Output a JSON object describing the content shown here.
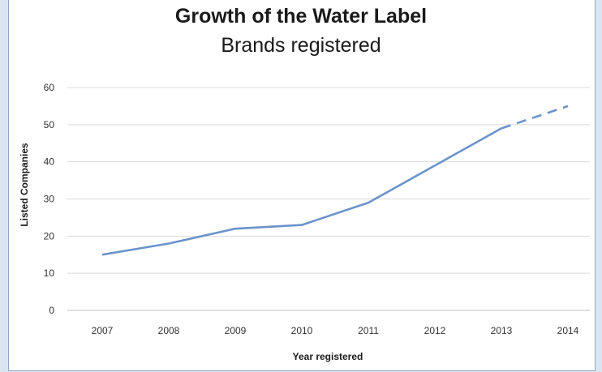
{
  "chart_data": {
    "type": "line",
    "title": "Growth of the Water Label",
    "subtitle": "Brands registered",
    "xlabel": "Year registered",
    "ylabel": "Listed Companies",
    "categories": [
      "2007",
      "2008",
      "2009",
      "2010",
      "2011",
      "2012",
      "2013",
      "2014"
    ],
    "yticks": [
      0,
      10,
      20,
      30,
      40,
      50,
      60
    ],
    "ylim": [
      0,
      60
    ],
    "grid": true,
    "legend": "none",
    "series": [
      {
        "values": [
          15,
          18,
          22,
          23,
          29,
          39,
          49,
          55
        ],
        "projected_from_index": 6,
        "color": "#6b93cb",
        "style_projection": "dashed"
      }
    ]
  }
}
